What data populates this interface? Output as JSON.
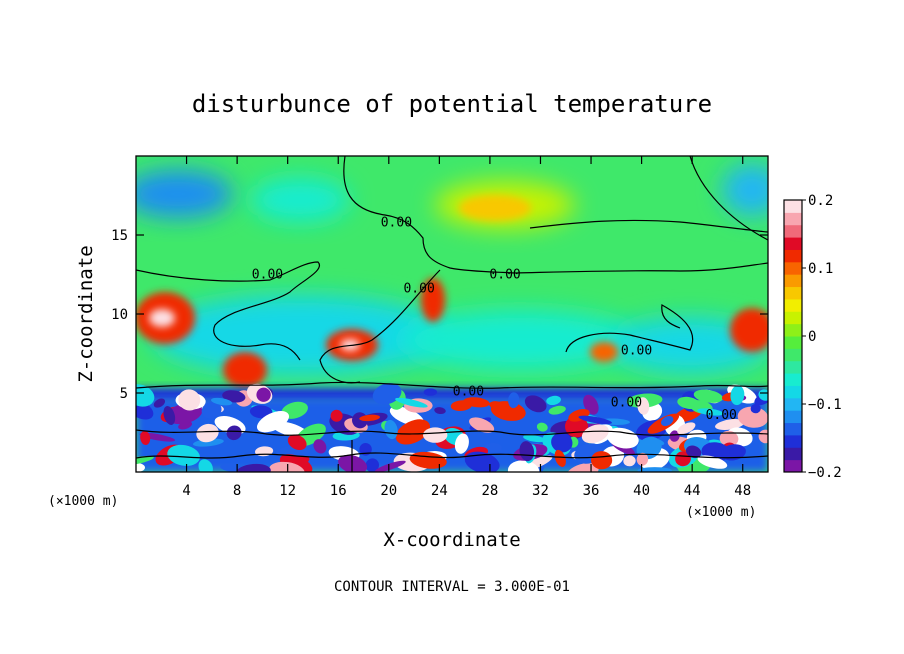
{
  "chart_data": {
    "type": "heatmap",
    "title": "disturbunce of potential temperature",
    "xlabel": "X-coordinate",
    "ylabel": "Z-coordinate",
    "x_unit_left": "(×1000 m)",
    "x_unit_right": "(×1000 m)",
    "xlim": [
      0,
      50
    ],
    "ylim": [
      0,
      20
    ],
    "x_ticks": [
      4,
      8,
      12,
      16,
      20,
      24,
      28,
      32,
      36,
      40,
      44,
      48
    ],
    "y_ticks": [
      5,
      10,
      15
    ],
    "colorbar": {
      "range": [
        -0.2,
        0.2
      ],
      "tick_values": [
        0.2,
        0.1,
        0,
        -0.1,
        -0.2
      ],
      "tick_labels": [
        "0.2",
        "0.1",
        "0",
        "−0.1",
        "−0.2"
      ],
      "colors": [
        "#7b16a6",
        "#3a1aa6",
        "#1f2fd8",
        "#1f5fe8",
        "#1f8ff0",
        "#22b6f3",
        "#14d8e6",
        "#18ecd0",
        "#2ee8a0",
        "#3fe86a",
        "#55ee3c",
        "#8ef018",
        "#c8f200",
        "#f2ee00",
        "#f8c800",
        "#fa9a00",
        "#f86400",
        "#f02a00",
        "#e00a26",
        "#f06a7a",
        "#f8a6b0",
        "#fce0e4"
      ]
    },
    "contour_labels": [
      {
        "text": "0.00",
        "x": 20.6,
        "z": 15.8
      },
      {
        "text": "0.00",
        "x": 10.4,
        "z": 12.5
      },
      {
        "text": "0.00",
        "x": 22.4,
        "z": 11.6
      },
      {
        "text": "0.00",
        "x": 29.2,
        "z": 12.5
      },
      {
        "text": "0.00",
        "x": 39.6,
        "z": 7.7
      },
      {
        "text": "0.00",
        "x": 26.3,
        "z": 5.1
      },
      {
        "text": "0.00",
        "x": 38.8,
        "z": 4.4
      },
      {
        "text": "0.00",
        "x": 46.3,
        "z": 3.6
      }
    ],
    "footer": "CONTOUR INTERVAL = 3.000E-01"
  }
}
